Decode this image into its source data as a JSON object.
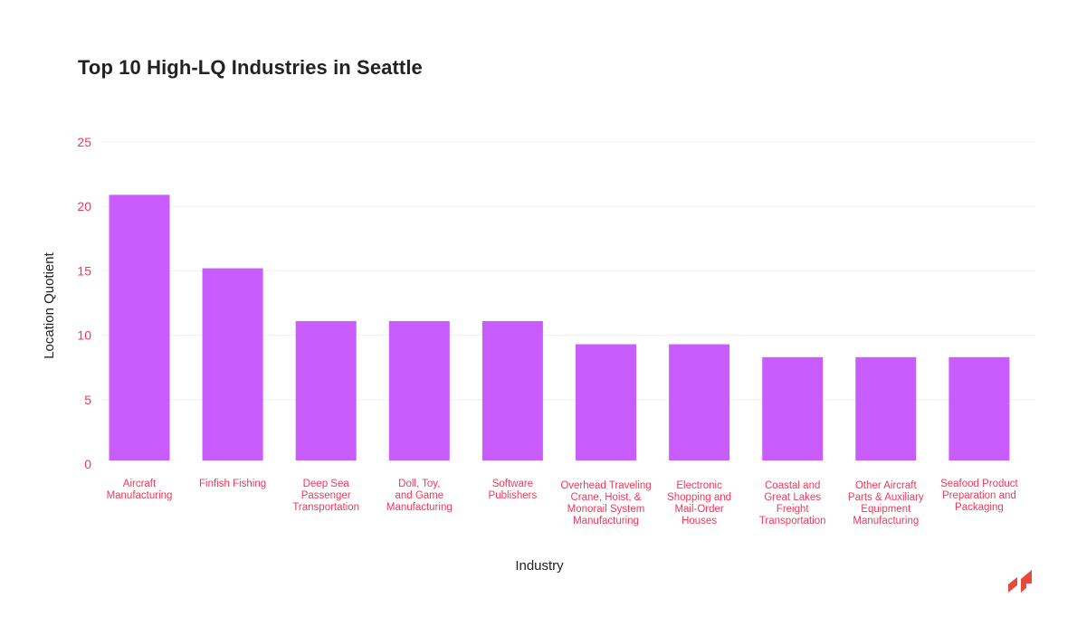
{
  "chart_data": {
    "type": "bar",
    "title": "Top 10 High-LQ Industries in Seattle",
    "xlabel": "Industry",
    "ylabel": "Location Quotient",
    "ylim": [
      0,
      25
    ],
    "yticks": [
      "0",
      "5",
      "10",
      "15",
      "20",
      "25"
    ],
    "grid": true,
    "bar_color": "#c95cfd",
    "label_color": "#f2385a",
    "categories": [
      [
        "Aircraft",
        "Manufacturing"
      ],
      [
        "Finfish Fishing"
      ],
      [
        "Deep Sea",
        "Passenger",
        "Transportation"
      ],
      [
        "Doll, Toy,",
        "and Game",
        "Manufacturing"
      ],
      [
        "Software",
        "Publishers"
      ],
      [
        "Overhead Traveling",
        "Crane, Hoist, &",
        "Monorail System",
        "Manufacturing"
      ],
      [
        "Electronic",
        "Shopping and",
        "Mail-Order",
        "Houses"
      ],
      [
        "Coastal and",
        "Great Lakes",
        "Freight",
        "Transportation"
      ],
      [
        "Other Aircraft",
        "Parts & Auxiliary",
        "Equipment",
        "Manufacturing"
      ],
      [
        "Seafood Product",
        "Preparation and",
        "Packaging"
      ]
    ],
    "values": [
      20.9,
      15.2,
      11.1,
      11.1,
      11.1,
      9.3,
      9.3,
      8.3,
      8.3,
      8.3
    ]
  },
  "logo": {
    "name": "brand-logo",
    "color": "#e8493f"
  }
}
